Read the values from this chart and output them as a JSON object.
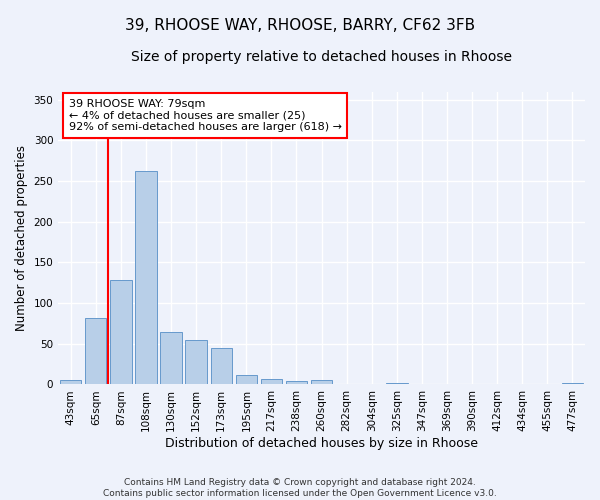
{
  "title1": "39, RHOOSE WAY, RHOOSE, BARRY, CF62 3FB",
  "title2": "Size of property relative to detached houses in Rhoose",
  "xlabel": "Distribution of detached houses by size in Rhoose",
  "ylabel": "Number of detached properties",
  "categories": [
    "43sqm",
    "65sqm",
    "87sqm",
    "108sqm",
    "130sqm",
    "152sqm",
    "173sqm",
    "195sqm",
    "217sqm",
    "238sqm",
    "260sqm",
    "282sqm",
    "304sqm",
    "325sqm",
    "347sqm",
    "369sqm",
    "390sqm",
    "412sqm",
    "434sqm",
    "455sqm",
    "477sqm"
  ],
  "values": [
    6,
    82,
    128,
    262,
    65,
    55,
    45,
    12,
    7,
    4,
    5,
    0,
    0,
    2,
    0,
    0,
    0,
    0,
    0,
    0,
    2
  ],
  "bar_color": "#b8cfe8",
  "bar_edge_color": "#6699cc",
  "property_line_x": 1.5,
  "annotation_lines": [
    "39 RHOOSE WAY: 79sqm",
    "← 4% of detached houses are smaller (25)",
    "92% of semi-detached houses are larger (618) →"
  ],
  "annotation_box_color": "white",
  "annotation_box_edge_color": "red",
  "vline_color": "red",
  "ylim": [
    0,
    360
  ],
  "yticks": [
    0,
    50,
    100,
    150,
    200,
    250,
    300,
    350
  ],
  "background_color": "#eef2fb",
  "grid_color": "white",
  "footer": "Contains HM Land Registry data © Crown copyright and database right 2024.\nContains public sector information licensed under the Open Government Licence v3.0.",
  "title1_fontsize": 11,
  "title2_fontsize": 10,
  "xlabel_fontsize": 9,
  "ylabel_fontsize": 8.5,
  "tick_fontsize": 7.5,
  "footer_fontsize": 6.5,
  "annotation_fontsize": 8
}
